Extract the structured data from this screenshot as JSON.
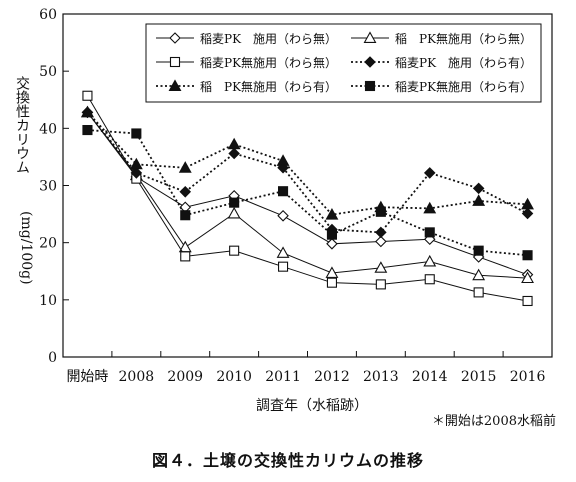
{
  "chart_data": {
    "type": "line",
    "ylabel": "交換性カリウム（mg/100g）",
    "ylabel_main": "交換性カリウム",
    "ylabel_unit": "(mg/100g)",
    "xlabel": "調査年（水稲跡）",
    "note": "＊開始は2008水稲前",
    "caption": "図４．土壌の交換性カリウムの推移",
    "ylim": [
      0,
      60
    ],
    "yticks": [
      0,
      10,
      20,
      30,
      40,
      50,
      60
    ],
    "categories": [
      "開始時",
      "2008",
      "2009",
      "2010",
      "2011",
      "2012",
      "2013",
      "2014",
      "2015",
      "2016"
    ],
    "grid": false,
    "legend_position": "top-right",
    "series": [
      {
        "name": "稲麦PK　施用（わら無）",
        "marker": "diamond-open",
        "dash": "solid",
        "values": [
          42.8,
          31.5,
          26.2,
          28.2,
          24.7,
          19.8,
          20.2,
          20.6,
          17.5,
          14.4
        ]
      },
      {
        "name": "稲　PK無施用（わら無）",
        "marker": "triangle-open",
        "dash": "solid",
        "values": [
          42.8,
          31.8,
          19.2,
          25.1,
          18.2,
          14.7,
          15.6,
          16.7,
          14.3,
          13.8
        ]
      },
      {
        "name": "稲麦PK無施用（わら無）",
        "marker": "square-open",
        "dash": "solid",
        "values": [
          45.7,
          31.2,
          17.6,
          18.6,
          15.8,
          13.0,
          12.7,
          13.6,
          11.3,
          9.8
        ]
      },
      {
        "name": "稲麦PK　施用（わら有）",
        "marker": "diamond-filled",
        "dash": "dotted",
        "values": [
          42.8,
          32.2,
          28.9,
          35.6,
          33.1,
          22.3,
          21.8,
          32.2,
          29.5,
          25.1
        ]
      },
      {
        "name": "稲　PK無施用（わら有）",
        "marker": "triangle-filled",
        "dash": "dotted",
        "values": [
          42.8,
          33.7,
          33.1,
          37.2,
          34.3,
          24.9,
          26.2,
          26.0,
          27.3,
          26.7
        ]
      },
      {
        "name": "稲麦PK無施用（わら有）",
        "marker": "square-filled",
        "dash": "dotted",
        "values": [
          39.7,
          39.1,
          24.8,
          27.0,
          29.0,
          21.4,
          25.4,
          21.8,
          18.6,
          17.8
        ]
      }
    ]
  }
}
